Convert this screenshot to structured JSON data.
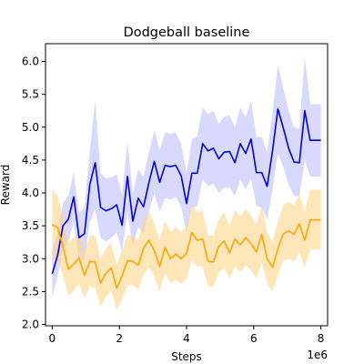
{
  "chart_data": {
    "type": "line",
    "title": "Dodgeball baseline",
    "xlabel": "Steps",
    "ylabel": "Reward",
    "x_offset_label": "1e6",
    "xlim": [
      -200000,
      8200000
    ],
    "ylim": [
      1.98,
      6.27
    ],
    "xticks": [
      0,
      2000000,
      4000000,
      6000000,
      8000000
    ],
    "xtick_labels": [
      "0",
      "2",
      "4",
      "6",
      "8"
    ],
    "yticks": [
      2.0,
      2.5,
      3.0,
      3.5,
      4.0,
      4.5,
      5.0,
      5.5,
      6.0
    ],
    "ytick_labels": [
      "2.0",
      "2.5",
      "3.0",
      "3.5",
      "4.0",
      "4.5",
      "5.0",
      "5.5",
      "6.0"
    ],
    "grid": false,
    "x": [
      0,
      160000,
      320000,
      480000,
      640000,
      800000,
      960000,
      1120000,
      1280000,
      1440000,
      1600000,
      1760000,
      1920000,
      2080000,
      2240000,
      2400000,
      2560000,
      2720000,
      2880000,
      3040000,
      3200000,
      3360000,
      3520000,
      3680000,
      3840000,
      4000000,
      4160000,
      4320000,
      4480000,
      4640000,
      4800000,
      4960000,
      5120000,
      5280000,
      5440000,
      5600000,
      5760000,
      5920000,
      6080000,
      6240000,
      6400000,
      6560000,
      6720000,
      6880000,
      7040000,
      7200000,
      7360000,
      7520000,
      7680000,
      7840000,
      8000000
    ],
    "series": [
      {
        "color": "#0000dd",
        "band_color": "#aaaaff",
        "values": [
          2.77,
          3.05,
          3.5,
          3.6,
          3.94,
          3.32,
          3.38,
          4.13,
          4.46,
          3.78,
          3.73,
          3.76,
          3.82,
          3.51,
          4.25,
          3.57,
          3.92,
          3.79,
          4.16,
          4.48,
          4.16,
          4.42,
          4.4,
          4.42,
          4.26,
          3.84,
          4.3,
          4.3,
          4.75,
          4.64,
          4.68,
          4.52,
          4.62,
          4.63,
          4.46,
          4.75,
          4.6,
          4.82,
          4.31,
          4.31,
          4.1,
          4.64,
          5.28,
          4.99,
          4.68,
          4.47,
          4.46,
          5.25,
          4.8,
          4.8,
          4.8
        ],
        "lower": [
          2.42,
          2.72,
          3.14,
          3.26,
          3.56,
          2.95,
          3.0,
          3.55,
          3.75,
          3.32,
          3.26,
          3.32,
          3.4,
          3.1,
          3.7,
          3.2,
          3.48,
          3.38,
          3.72,
          3.99,
          3.72,
          3.92,
          3.9,
          3.94,
          3.79,
          3.4,
          3.78,
          3.8,
          4.2,
          4.1,
          4.14,
          4.0,
          4.08,
          4.08,
          3.95,
          4.2,
          4.05,
          4.22,
          3.8,
          3.78,
          3.6,
          4.05,
          4.6,
          4.4,
          4.12,
          3.96,
          3.95,
          4.5,
          4.25,
          4.25,
          4.25
        ],
        "upper": [
          3.13,
          3.4,
          3.85,
          3.96,
          4.32,
          3.7,
          3.78,
          4.65,
          5.4,
          4.3,
          4.22,
          4.24,
          4.28,
          3.96,
          4.78,
          4.0,
          4.36,
          4.25,
          4.62,
          4.95,
          4.65,
          4.92,
          4.9,
          4.92,
          4.75,
          4.3,
          4.82,
          4.86,
          5.3,
          5.2,
          5.25,
          5.05,
          5.16,
          5.18,
          5.0,
          5.3,
          5.15,
          5.4,
          4.85,
          4.85,
          4.62,
          5.22,
          5.95,
          5.6,
          5.25,
          5.0,
          4.98,
          6.08,
          5.35,
          5.35,
          5.35
        ]
      },
      {
        "color": "#ffa500",
        "band_color": "#ffd27f",
        "values": [
          3.52,
          3.47,
          3.19,
          2.84,
          2.92,
          3.01,
          2.75,
          2.96,
          2.95,
          2.63,
          2.78,
          2.86,
          2.55,
          2.74,
          2.97,
          2.96,
          2.9,
          3.16,
          3.28,
          3.12,
          2.88,
          3.17,
          3.0,
          3.07,
          3.0,
          3.08,
          3.4,
          3.28,
          3.3,
          2.96,
          2.95,
          3.19,
          3.27,
          3.09,
          3.3,
          3.21,
          3.32,
          3.23,
          3.1,
          3.37,
          3.0,
          2.87,
          3.15,
          3.38,
          3.42,
          3.37,
          3.53,
          3.28,
          3.59,
          3.59,
          3.59
        ],
        "lower": [
          3.0,
          2.98,
          2.75,
          2.44,
          2.52,
          2.62,
          2.4,
          2.58,
          2.55,
          2.28,
          2.42,
          2.5,
          2.22,
          2.38,
          2.6,
          2.6,
          2.53,
          2.76,
          2.87,
          2.72,
          2.5,
          2.78,
          2.62,
          2.68,
          2.62,
          2.69,
          2.98,
          2.88,
          2.88,
          2.58,
          2.57,
          2.79,
          2.86,
          2.7,
          2.88,
          2.8,
          2.9,
          2.82,
          2.7,
          2.95,
          2.62,
          2.5,
          2.75,
          2.96,
          3.0,
          2.95,
          3.1,
          2.86,
          3.14,
          3.14,
          3.14
        ],
        "upper": [
          4.05,
          3.96,
          3.64,
          3.25,
          3.32,
          3.42,
          3.12,
          3.35,
          3.36,
          3.0,
          3.16,
          3.24,
          2.92,
          3.12,
          3.36,
          3.35,
          3.28,
          3.58,
          3.72,
          3.54,
          3.28,
          3.58,
          3.4,
          3.48,
          3.4,
          3.5,
          3.84,
          3.7,
          3.74,
          3.36,
          3.35,
          3.6,
          3.7,
          3.5,
          3.74,
          3.64,
          3.76,
          3.66,
          3.52,
          3.82,
          3.4,
          3.26,
          3.58,
          3.82,
          3.86,
          3.81,
          3.98,
          3.72,
          4.05,
          4.05,
          4.05
        ]
      }
    ]
  }
}
